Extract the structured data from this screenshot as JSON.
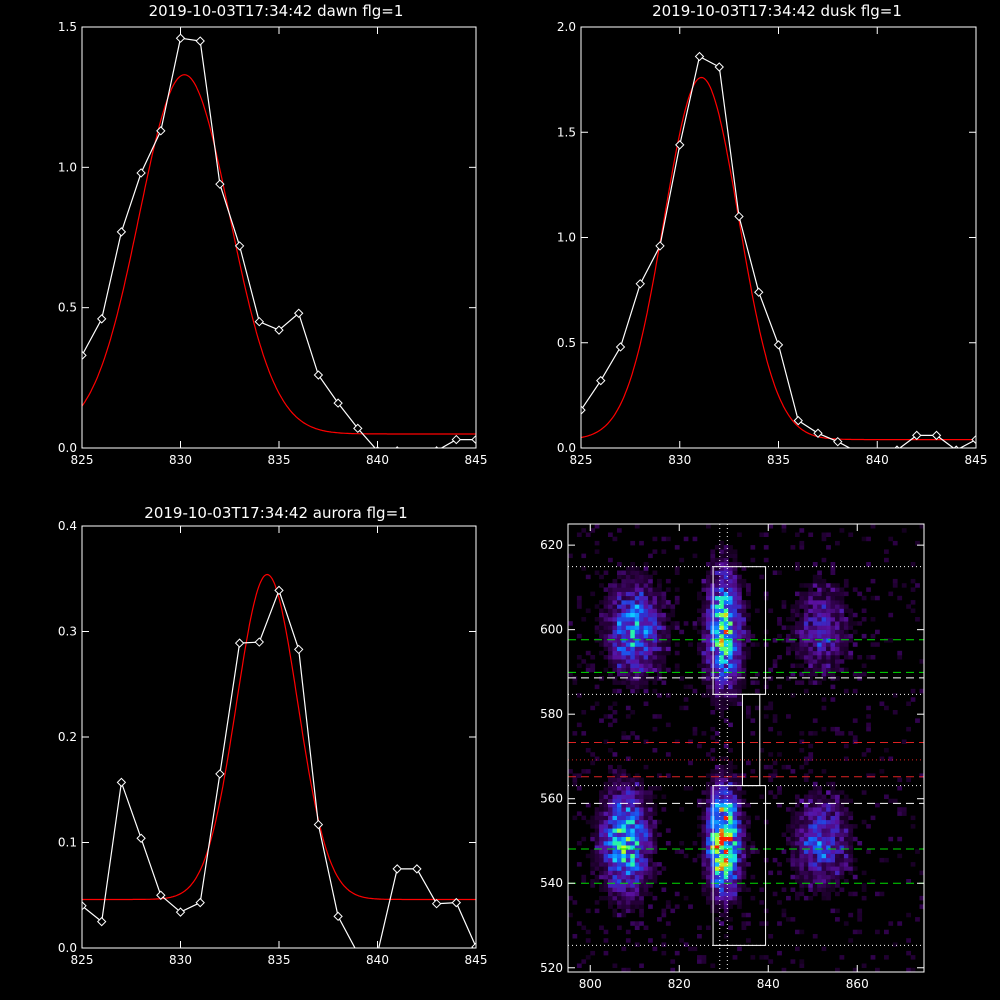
{
  "chart_data": [
    {
      "type": "line",
      "title": "2019-10-03T17:34:42 dawn flg=1",
      "xlim": [
        825,
        845
      ],
      "ylim": [
        0,
        1.5
      ],
      "xticks": [
        825,
        830,
        835,
        840,
        845
      ],
      "yticks": [
        0.0,
        0.5,
        1.0,
        1.5
      ],
      "ytick_labels": [
        "0.0",
        "0.5",
        "1.0",
        "1.5"
      ],
      "series": [
        {
          "role": "data",
          "color": "#ffffff",
          "marker": "diamond",
          "x": [
            825,
            826,
            827,
            828,
            829,
            830,
            831,
            832,
            833,
            834,
            835,
            836,
            837,
            838,
            839,
            840,
            841,
            842,
            843,
            844,
            845
          ],
          "y": [
            0.33,
            0.46,
            0.77,
            0.98,
            1.13,
            1.46,
            1.45,
            0.94,
            0.72,
            0.45,
            0.42,
            0.48,
            0.26,
            0.16,
            0.07,
            -0.01,
            -0.01,
            -0.02,
            -0.01,
            0.03,
            0.03
          ]
        },
        {
          "role": "fit",
          "color": "#ff0000",
          "curve": "gauss",
          "a": 1.28,
          "mu": 830.2,
          "sigma": 2.3,
          "c": 0.05
        }
      ]
    },
    {
      "type": "line",
      "title": "2019-10-03T17:34:42 dusk flg=1",
      "xlim": [
        825,
        845
      ],
      "ylim": [
        0,
        2.0
      ],
      "xticks": [
        825,
        830,
        835,
        840,
        845
      ],
      "yticks": [
        0.0,
        0.5,
        1.0,
        1.5,
        2.0
      ],
      "ytick_labels": [
        "0.0",
        "0.5",
        "1.0",
        "1.5",
        "2.0"
      ],
      "series": [
        {
          "role": "data",
          "color": "#ffffff",
          "marker": "diamond",
          "x": [
            825,
            826,
            827,
            828,
            829,
            830,
            831,
            832,
            833,
            834,
            835,
            836,
            837,
            838,
            839,
            840,
            841,
            842,
            843,
            844,
            845
          ],
          "y": [
            0.18,
            0.32,
            0.48,
            0.78,
            0.96,
            1.44,
            1.86,
            1.81,
            1.1,
            0.74,
            0.49,
            0.13,
            0.07,
            0.03,
            -0.02,
            -0.02,
            -0.01,
            0.06,
            0.06,
            -0.01,
            0.04
          ]
        },
        {
          "role": "fit",
          "color": "#ff0000",
          "curve": "gauss",
          "a": 1.72,
          "mu": 831.1,
          "sigma": 1.9,
          "c": 0.04
        }
      ]
    },
    {
      "type": "line",
      "title": "2019-10-03T17:34:42 aurora flg=1",
      "xlim": [
        825,
        845
      ],
      "ylim": [
        0,
        0.4
      ],
      "xticks": [
        825,
        830,
        835,
        840,
        845
      ],
      "yticks": [
        0.0,
        0.1,
        0.2,
        0.3,
        0.4
      ],
      "ytick_labels": [
        "0.0",
        "0.1",
        "0.2",
        "0.3",
        "0.4"
      ],
      "series": [
        {
          "role": "data",
          "color": "#ffffff",
          "marker": "diamond",
          "x": [
            825,
            826,
            827,
            828,
            829,
            830,
            831,
            832,
            833,
            834,
            835,
            836,
            837,
            838,
            839,
            840,
            841,
            842,
            843,
            844,
            845
          ],
          "y": [
            0.04,
            0.025,
            0.157,
            0.104,
            0.05,
            0.034,
            0.043,
            0.165,
            0.289,
            0.29,
            0.339,
            0.283,
            0.117,
            0.03,
            -0.005,
            -0.005,
            0.075,
            0.075,
            0.042,
            0.043,
            0.001
          ]
        },
        {
          "role": "fit",
          "color": "#ff0000",
          "curve": "gauss",
          "a": 0.308,
          "mu": 834.4,
          "sigma": 1.55,
          "c": 0.046
        }
      ]
    },
    {
      "type": "heatmap",
      "title": "",
      "xlim": [
        795,
        875
      ],
      "ylim": [
        519,
        625
      ],
      "xticks": [
        800,
        820,
        840,
        860
      ],
      "yticks": [
        520,
        540,
        560,
        580,
        600,
        620
      ],
      "colormap": [
        "#000000",
        "#2a0040",
        "#5a10a0",
        "#3030d0",
        "#1070ff",
        "#10d0ff",
        "#30ff90",
        "#d0ff20",
        "#ff2000"
      ],
      "blobs": [
        {
          "x": 830,
          "y": 550,
          "sx": 2.4,
          "sy": 8,
          "amp": 1.0
        },
        {
          "x": 830,
          "y": 600,
          "sx": 2.6,
          "sy": 9,
          "amp": 0.75
        },
        {
          "x": 808,
          "y": 550,
          "sx": 3.5,
          "sy": 8,
          "amp": 0.7
        },
        {
          "x": 810,
          "y": 600,
          "sx": 4,
          "sy": 7,
          "amp": 0.55
        },
        {
          "x": 852,
          "y": 550,
          "sx": 4,
          "sy": 7,
          "amp": 0.4
        },
        {
          "x": 852,
          "y": 600,
          "sx": 4,
          "sy": 7,
          "amp": 0.3
        }
      ],
      "rectangles": [
        {
          "x": [
            827.6,
            839.4
          ],
          "y": [
            525.3,
            563.1
          ]
        },
        {
          "x": [
            827.6,
            839.4
          ],
          "y": [
            584.7,
            614.9
          ]
        },
        {
          "x": [
            834.2,
            838.1
          ],
          "y": [
            563.1,
            584.7
          ]
        }
      ],
      "vlines": [
        {
          "x": 829.1,
          "color": "#ffffff",
          "style": "dotted"
        },
        {
          "x": 830.8,
          "color": "#ffffff",
          "style": "dotted"
        }
      ],
      "hlines": [
        {
          "y": 525.3,
          "color": "#ffffff",
          "style": "dotted"
        },
        {
          "y": 540.0,
          "color": "#00dd00",
          "style": "dashed"
        },
        {
          "y": 548.1,
          "color": "#00dd00",
          "style": "dashed"
        },
        {
          "y": 558.9,
          "color": "#ffffff",
          "style": "dashed"
        },
        {
          "y": 563.1,
          "color": "#ffffff",
          "style": "dotted"
        },
        {
          "y": 565.2,
          "color": "#dd2222",
          "style": "dashed"
        },
        {
          "y": 569.2,
          "color": "#dd2222",
          "style": "dotted"
        },
        {
          "y": 573.3,
          "color": "#dd2222",
          "style": "dashed"
        },
        {
          "y": 584.7,
          "color": "#ffffff",
          "style": "dotted"
        },
        {
          "y": 588.6,
          "color": "#ffffff",
          "style": "dashed"
        },
        {
          "y": 589.9,
          "color": "#00dd00",
          "style": "dashed"
        },
        {
          "y": 597.6,
          "color": "#00dd00",
          "style": "dashed"
        },
        {
          "y": 614.9,
          "color": "#ffffff",
          "style": "dotted"
        }
      ]
    }
  ]
}
